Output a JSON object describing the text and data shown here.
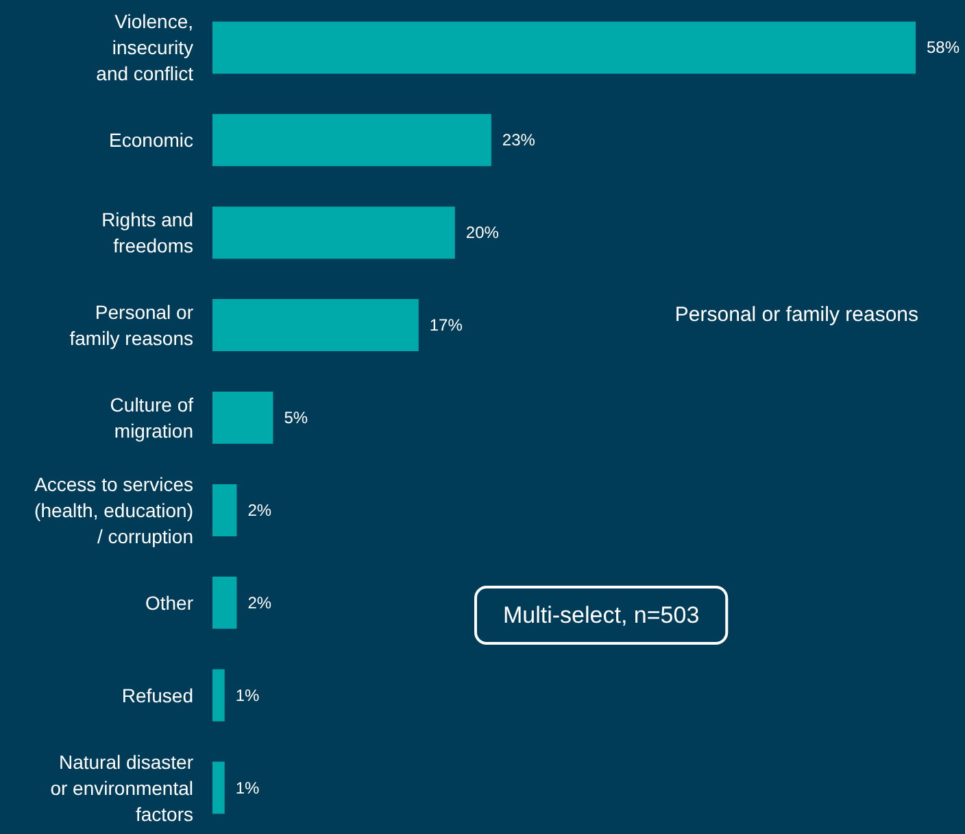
{
  "chart_data": {
    "type": "bar",
    "orientation": "horizontal",
    "categories": [
      "Violence,\ninsecurity\nand conflict",
      "Economic",
      "Rights and\nfreedoms",
      "Personal or\nfamily reasons",
      "Culture of\nmigration",
      "Access to services\n(health, education)\n/ corruption",
      "Other",
      "Refused",
      "Natural disaster\nor environmental\nfactors"
    ],
    "values": [
      58,
      23,
      20,
      17,
      5,
      2,
      2,
      1,
      1
    ],
    "value_labels": [
      "58%",
      "23%",
      "20%",
      "17%",
      "5%",
      "2%",
      "2%",
      "1%",
      "1%"
    ],
    "color": "#00aaaa",
    "annotations": [
      "Personal or family reasons",
      "Multi-select, n=503"
    ]
  }
}
